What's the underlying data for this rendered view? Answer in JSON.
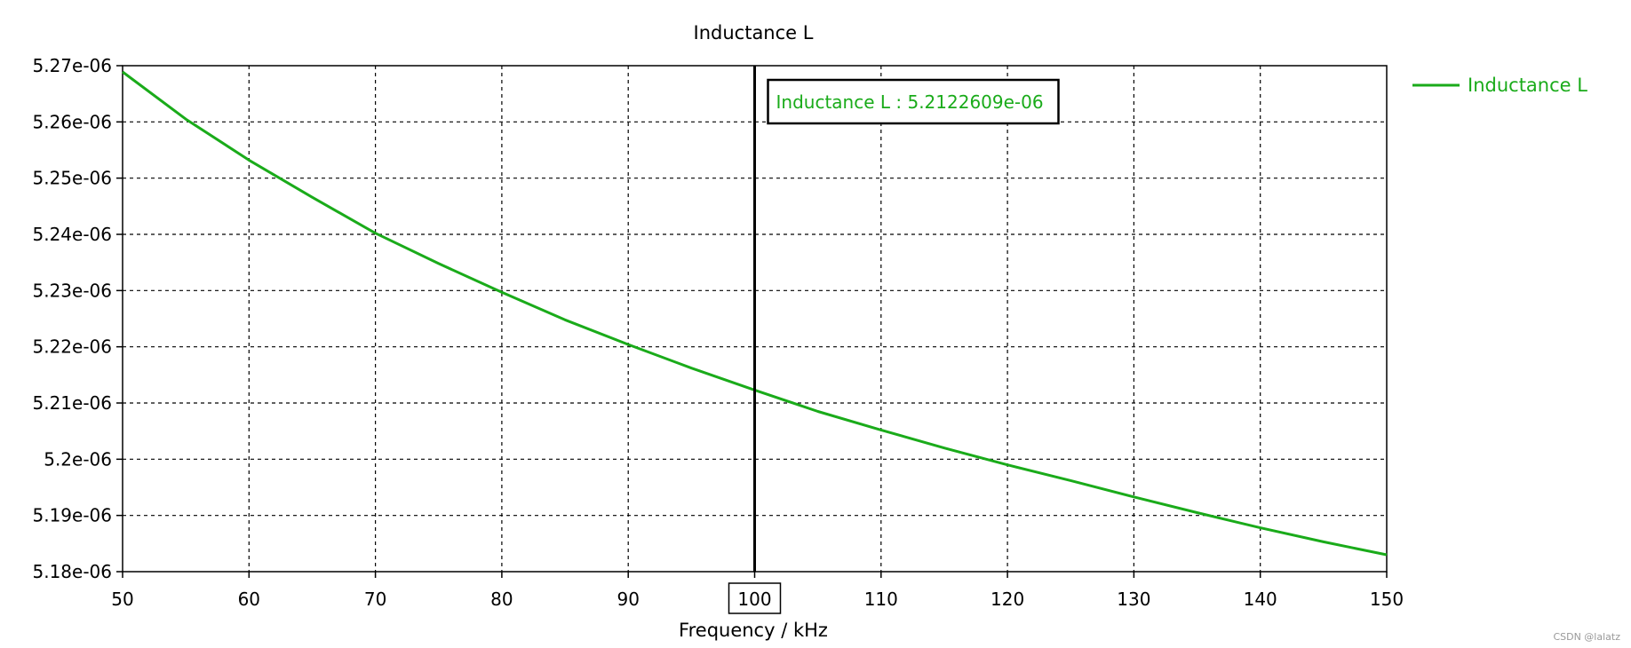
{
  "chart_data": {
    "type": "line",
    "title": "Inductance L",
    "xlabel": "Frequency / kHz",
    "ylabel": "",
    "xlim": [
      50,
      150
    ],
    "ylim": [
      5.18e-06,
      5.27e-06
    ],
    "x_ticks": [
      50,
      60,
      70,
      80,
      90,
      100,
      110,
      120,
      130,
      140,
      150
    ],
    "x_tick_labels": [
      "50",
      "60",
      "70",
      "80",
      "90",
      "100",
      "110",
      "120",
      "130",
      "140",
      "150"
    ],
    "y_ticks": [
      5.18e-06,
      5.19e-06,
      5.2e-06,
      5.21e-06,
      5.22e-06,
      5.23e-06,
      5.24e-06,
      5.25e-06,
      5.26e-06,
      5.27e-06
    ],
    "y_tick_labels": [
      "5.18e-06",
      "5.19e-06",
      "5.2e-06",
      "5.21e-06",
      "5.22e-06",
      "5.23e-06",
      "5.24e-06",
      "5.25e-06",
      "5.26e-06",
      "5.27e-06"
    ],
    "grid": true,
    "legend_position": "top-right",
    "series": [
      {
        "name": "Inductance L",
        "color": "#1aab1a",
        "x": [
          50,
          55,
          60,
          65,
          70,
          75,
          80,
          85,
          90,
          95,
          100,
          105,
          110,
          115,
          120,
          125,
          130,
          135,
          140,
          145,
          150
        ],
        "y": [
          5.2689e-06,
          5.2605e-06,
          5.2532e-06,
          5.2466e-06,
          5.2402e-06,
          5.2348e-06,
          5.2297e-06,
          5.2248e-06,
          5.2204e-06,
          5.2162e-06,
          5.2123e-06,
          5.2085e-06,
          5.2052e-06,
          5.202e-06,
          5.199e-06,
          5.1962e-06,
          5.1933e-06,
          5.1905e-06,
          5.1878e-06,
          5.1853e-06,
          5.183e-06
        ]
      }
    ],
    "cursor": {
      "x": 100,
      "x_label": "100",
      "readout": "Inductance L : 5.2122609e-06"
    }
  },
  "watermark": "CSDN @lalatz"
}
